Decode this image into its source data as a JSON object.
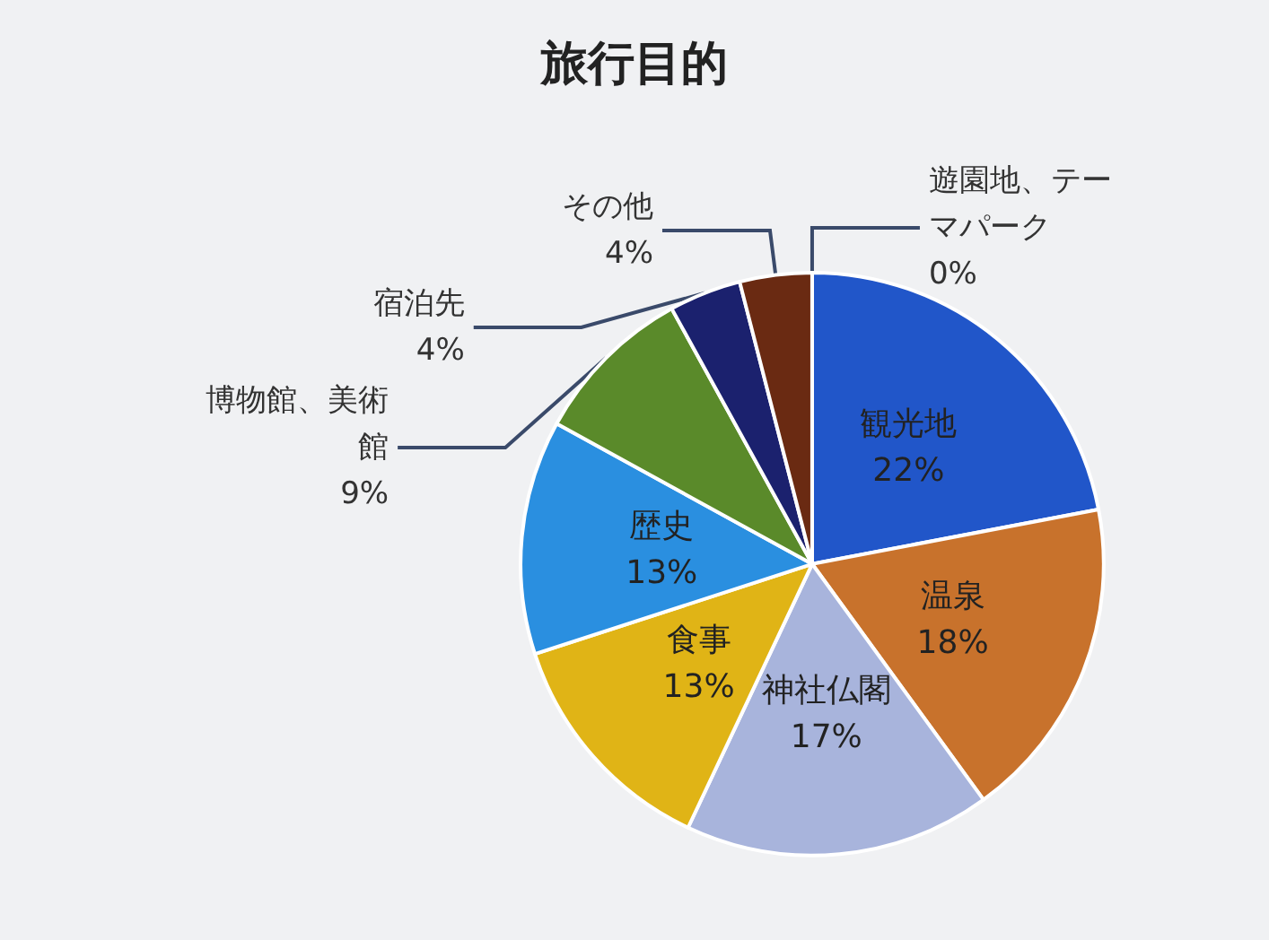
{
  "chart_data": {
    "type": "pie",
    "title": "旅行目的",
    "categories": [
      "観光地",
      "温泉",
      "神社仏閣",
      "食事",
      "歴史",
      "博物館、美術館",
      "宿泊先",
      "その他",
      "遊園地、テーマパーク"
    ],
    "values": [
      22,
      18,
      17,
      13,
      13,
      9,
      4,
      4,
      0
    ],
    "colors": [
      "#2156c9",
      "#c8722c",
      "#a8b4dc",
      "#e0b416",
      "#2a8fe0",
      "#5a8a2a",
      "#1b216e",
      "#6a2a12",
      "#3a5fb0"
    ],
    "value_labels": [
      "22%",
      "18%",
      "17%",
      "13%",
      "13%",
      "9%",
      "4%",
      "4%",
      "0%"
    ],
    "legend": false
  }
}
